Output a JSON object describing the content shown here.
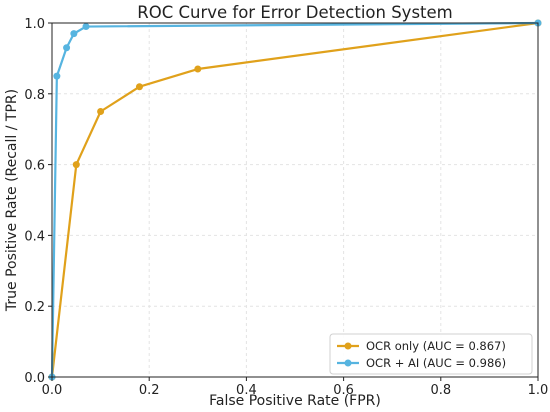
{
  "chart_data": {
    "type": "line",
    "title": "ROC Curve for Error Detection System",
    "xlabel": "False Positive Rate (FPR)",
    "ylabel": "True Positive Rate (Recall / TPR)",
    "xlim": [
      0,
      1
    ],
    "ylim": [
      0,
      1
    ],
    "xticks": [
      "0.0",
      "0.2",
      "0.4",
      "0.6",
      "0.8",
      "1.0"
    ],
    "yticks": [
      "0.0",
      "0.2",
      "0.4",
      "0.6",
      "0.8",
      "1.0"
    ],
    "grid": true,
    "legend_position": "bottom-right",
    "series": [
      {
        "name": "OCR only (AUC = 0.867)",
        "color": "#e0a11b",
        "x": [
          0.0,
          0.05,
          0.1,
          0.18,
          0.3,
          1.0
        ],
        "y": [
          0.0,
          0.6,
          0.75,
          0.82,
          0.87,
          1.0
        ]
      },
      {
        "name": "OCR + AI (AUC = 0.986)",
        "color": "#56b4e0",
        "x": [
          0.0,
          0.01,
          0.03,
          0.045,
          0.07,
          1.0
        ],
        "y": [
          0.0,
          0.85,
          0.93,
          0.97,
          0.99,
          1.0
        ]
      }
    ]
  }
}
